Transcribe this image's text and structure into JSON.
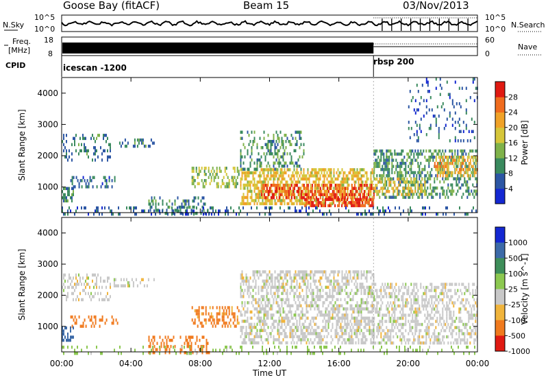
{
  "header": {
    "station": "Goose Bay (fitACF)",
    "beam": "Beam 15",
    "date": "03/Nov/2013"
  },
  "noise_panel": {
    "left_label": "N.Sky",
    "right_label": "N.Search",
    "tick_top": "10^5",
    "tick_bottom": "10^0"
  },
  "freq_panel": {
    "left_label_line1": "Freq.",
    "left_label_line2": "[MHz]",
    "left_ticks": [
      "18",
      "8"
    ],
    "right_label": "Nave",
    "right_ticks": [
      "60",
      "0"
    ]
  },
  "cpid": {
    "label": "CPID",
    "programs": [
      {
        "name": "icescan -1200",
        "start_hour": 0
      },
      {
        "name": "rbsp 200",
        "start_hour": 18
      }
    ]
  },
  "chart_data": [
    {
      "type": "heatmap",
      "name": "power",
      "xlabel": "Time UT",
      "ylabel": "Slant Range [km]",
      "x_ticks": [
        "00:00",
        "04:00",
        "08:00",
        "12:00",
        "16:00",
        "20:00",
        "00:00"
      ],
      "xlim_hours": [
        0,
        24
      ],
      "y_ticks": [
        1000,
        2000,
        3000,
        4000
      ],
      "ylim": [
        180,
        4500
      ],
      "colorbar": {
        "title": "Power [dB]",
        "labels": [
          "4",
          "8",
          "12",
          "16",
          "20",
          "24",
          "28"
        ],
        "range": [
          0,
          30
        ],
        "colors": [
          "#1428d2",
          "#2c56a4",
          "#3a8a5e",
          "#7fb24a",
          "#d6c63a",
          "#f0a228",
          "#f06c1e",
          "#e01a12"
        ]
      },
      "regions": [
        {
          "t0": 0.0,
          "t1": 2.8,
          "r0": 1900,
          "r1": 2700,
          "value": 8,
          "density": 0.25
        },
        {
          "t0": 3.0,
          "t1": 5.3,
          "r0": 2300,
          "r1": 2550,
          "value": 8,
          "density": 0.3
        },
        {
          "t0": 0.5,
          "t1": 3.2,
          "r0": 1000,
          "r1": 1350,
          "value": 7,
          "density": 0.35
        },
        {
          "t0": 0.0,
          "t1": 0.7,
          "r0": 600,
          "r1": 1000,
          "value": 9,
          "density": 0.6
        },
        {
          "t0": 5.0,
          "t1": 8.5,
          "r0": 180,
          "r1": 700,
          "value": 8,
          "density": 0.3
        },
        {
          "t0": 7.5,
          "t1": 10.2,
          "r0": 1050,
          "r1": 1650,
          "value": 14,
          "density": 0.45
        },
        {
          "t0": 10.3,
          "t1": 18.0,
          "r0": 500,
          "r1": 1600,
          "value": 18,
          "density": 0.6
        },
        {
          "t0": 11.5,
          "t1": 18.0,
          "r0": 700,
          "r1": 1100,
          "value": 26,
          "density": 0.55
        },
        {
          "t0": 14.0,
          "t1": 18.0,
          "r0": 400,
          "r1": 650,
          "value": 27,
          "density": 0.6
        },
        {
          "t0": 10.3,
          "t1": 14.0,
          "r0": 1600,
          "r1": 2800,
          "value": 10,
          "density": 0.3
        },
        {
          "t0": 18.0,
          "t1": 24.0,
          "r0": 700,
          "r1": 2200,
          "value": 10,
          "density": 0.45
        },
        {
          "t0": 18.0,
          "t1": 21.0,
          "r0": 800,
          "r1": 1300,
          "value": 18,
          "density": 0.45
        },
        {
          "t0": 21.5,
          "t1": 24.0,
          "r0": 1400,
          "r1": 2000,
          "value": 20,
          "density": 0.45
        },
        {
          "t0": 0.0,
          "t1": 24.0,
          "r0": 180,
          "r1": 380,
          "value": 6,
          "density": 0.2
        },
        {
          "t0": 20.0,
          "t1": 24.0,
          "r0": 2500,
          "r1": 4500,
          "value": 6,
          "density": 0.12
        }
      ]
    },
    {
      "type": "heatmap",
      "name": "velocity",
      "xlabel": "Time UT",
      "ylabel": "Slant Range [km]",
      "x_ticks": [
        "00:00",
        "04:00",
        "08:00",
        "12:00",
        "16:00",
        "20:00",
        "00:00"
      ],
      "xlim_hours": [
        0,
        24
      ],
      "y_ticks": [
        1000,
        2000,
        3000,
        4000
      ],
      "ylim": [
        180,
        4500
      ],
      "colorbar": {
        "title": "Velocity [m s^-1]",
        "labels": [
          "1000",
          "500",
          "100",
          "25",
          "-25",
          "-100",
          "-500",
          "-1000"
        ],
        "colors": [
          "#1428d2",
          "#3c6aa8",
          "#3e8e5a",
          "#8cc850",
          "#c8c8c8",
          "#f0b43c",
          "#f07a1e",
          "#e01a12"
        ]
      },
      "regions": [
        {
          "t0": 0.0,
          "t1": 2.8,
          "r0": 1900,
          "r1": 2700,
          "value": 0,
          "density": 0.3
        },
        {
          "t0": 3.0,
          "t1": 5.3,
          "r0": 2300,
          "r1": 2550,
          "value": 0,
          "density": 0.3
        },
        {
          "t0": 0.5,
          "t1": 3.2,
          "r0": 1000,
          "r1": 1350,
          "value": -150,
          "density": 0.3
        },
        {
          "t0": 0.0,
          "t1": 0.7,
          "r0": 600,
          "r1": 1000,
          "value": 600,
          "density": 0.5
        },
        {
          "t0": 5.0,
          "t1": 8.5,
          "r0": 180,
          "r1": 700,
          "value": -200,
          "density": 0.3
        },
        {
          "t0": 7.5,
          "t1": 10.2,
          "r0": 1050,
          "r1": 1650,
          "value": -120,
          "density": 0.45
        },
        {
          "t0": 10.3,
          "t1": 18.0,
          "r0": 500,
          "r1": 2800,
          "value": 0,
          "density": 0.5
        },
        {
          "t0": 18.0,
          "t1": 24.0,
          "r0": 500,
          "r1": 2400,
          "value": 0,
          "density": 0.45
        },
        {
          "t0": 0.0,
          "t1": 24.0,
          "r0": 180,
          "r1": 380,
          "value": 50,
          "density": 0.15
        }
      ]
    }
  ]
}
